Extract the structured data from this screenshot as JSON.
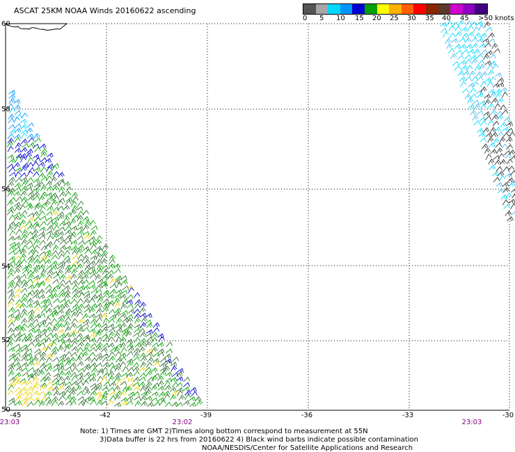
{
  "title": "ASCAT 25KM NOAA Winds 20160622 ascending",
  "legend": {
    "labels": [
      "0",
      "5",
      "10",
      "15",
      "20",
      "25",
      "30",
      "35",
      "40",
      "45",
      ">50 knots"
    ],
    "colors": [
      "#555555",
      "#a6a6a6",
      "#00d8ff",
      "#0096ff",
      "#0000d0",
      "#00a000",
      "#ffff00",
      "#ffb000",
      "#ff6000",
      "#ff0000",
      "#8b2500",
      "#5a3a2a",
      "#d000d0",
      "#9000c0",
      "#400080"
    ]
  },
  "axes": {
    "lon_ticks": [
      "-45",
      "-42",
      "-39",
      "-36",
      "-33",
      "-30"
    ],
    "lat_ticks": [
      "60",
      "58",
      "56",
      "54",
      "52",
      "50"
    ]
  },
  "times": [
    "23:03",
    "23:02",
    "23:03"
  ],
  "notes": [
    "Note: 1) Times are GMT 2)Times along bottom correspond to measurement at 55N",
    "3)Data buffer is 22 hrs from 20160622 4) Black wind barbs indicate possible contamination",
    "NOAA/NESDIS/Center for Satellite Applications and Research"
  ]
}
